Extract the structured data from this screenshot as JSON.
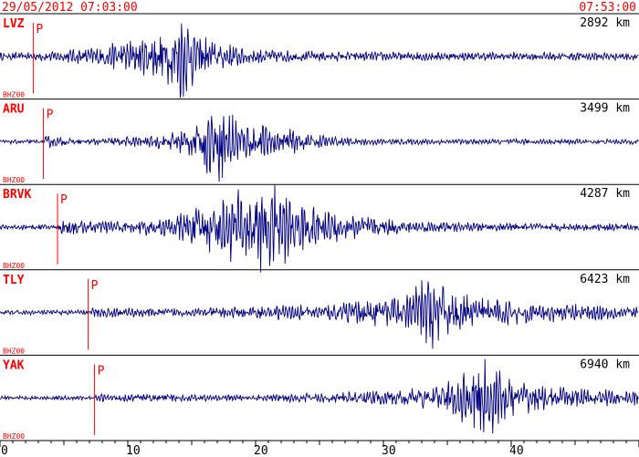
{
  "header": {
    "start_time": "29/05/2012 07:03:00",
    "end_time": "07:53:00"
  },
  "colors": {
    "text": "#ff0000",
    "trace": "#000080",
    "frame": "#000000",
    "pick": "#ff0000",
    "background": "#ffffff"
  },
  "chart_data": {
    "type": "line",
    "x_ticks": [
      0,
      10,
      20,
      30,
      40
    ],
    "xlim": [
      0,
      50
    ],
    "traces": [
      {
        "station": "LVZ",
        "channel": "BHZ00",
        "distance": "2892 km",
        "p_label": "P",
        "p_time": 2.6,
        "envelope": [
          [
            0,
            0.08
          ],
          [
            2.6,
            0.08
          ],
          [
            7.5,
            0.18
          ],
          [
            11,
            0.38
          ],
          [
            13,
            0.55
          ],
          [
            14.2,
            0.9
          ],
          [
            15,
            0.6
          ],
          [
            17,
            0.3
          ],
          [
            19,
            0.18
          ],
          [
            22,
            0.12
          ],
          [
            28,
            0.09
          ],
          [
            50,
            0.08
          ]
        ]
      },
      {
        "station": "ARU",
        "channel": "BHZ00",
        "distance": "3499 km",
        "p_label": "P",
        "p_time": 3.4,
        "envelope": [
          [
            0,
            0.04
          ],
          [
            3.4,
            0.04
          ],
          [
            3.6,
            0.12
          ],
          [
            6,
            0.06
          ],
          [
            12,
            0.12
          ],
          [
            15,
            0.3
          ],
          [
            17,
            0.85
          ],
          [
            19,
            0.4
          ],
          [
            22,
            0.28
          ],
          [
            24,
            0.18
          ],
          [
            26,
            0.1
          ],
          [
            30,
            0.06
          ],
          [
            50,
            0.05
          ]
        ]
      },
      {
        "station": "BRVK",
        "channel": "BHZ00",
        "distance": "4287 km",
        "p_label": "P",
        "p_time": 4.5,
        "envelope": [
          [
            0,
            0.05
          ],
          [
            4.5,
            0.05
          ],
          [
            4.7,
            0.2
          ],
          [
            7,
            0.12
          ],
          [
            13,
            0.18
          ],
          [
            17,
            0.55
          ],
          [
            19,
            0.75
          ],
          [
            21,
            0.95
          ],
          [
            23,
            0.55
          ],
          [
            26,
            0.35
          ],
          [
            29,
            0.2
          ],
          [
            32,
            0.12
          ],
          [
            38,
            0.08
          ],
          [
            50,
            0.07
          ]
        ]
      },
      {
        "station": "TLY",
        "channel": "BHZ00",
        "distance": "6423 km",
        "p_label": "P",
        "p_time": 6.9,
        "envelope": [
          [
            0,
            0.05
          ],
          [
            6.9,
            0.05
          ],
          [
            7.1,
            0.1
          ],
          [
            15,
            0.08
          ],
          [
            26,
            0.18
          ],
          [
            30,
            0.3
          ],
          [
            32,
            0.4
          ],
          [
            33.5,
            0.8
          ],
          [
            34.5,
            0.55
          ],
          [
            37,
            0.3
          ],
          [
            42,
            0.2
          ],
          [
            47,
            0.15
          ],
          [
            50,
            0.13
          ]
        ]
      },
      {
        "station": "YAK",
        "channel": "BHZ00",
        "distance": "6940 km",
        "p_label": "P",
        "p_time": 7.4,
        "envelope": [
          [
            0,
            0.04
          ],
          [
            7.4,
            0.04
          ],
          [
            7.6,
            0.08
          ],
          [
            20,
            0.06
          ],
          [
            28,
            0.12
          ],
          [
            34,
            0.22
          ],
          [
            36.5,
            0.55
          ],
          [
            38,
            0.9
          ],
          [
            39.5,
            0.45
          ],
          [
            42,
            0.25
          ],
          [
            46,
            0.18
          ],
          [
            50,
            0.15
          ]
        ]
      }
    ]
  }
}
